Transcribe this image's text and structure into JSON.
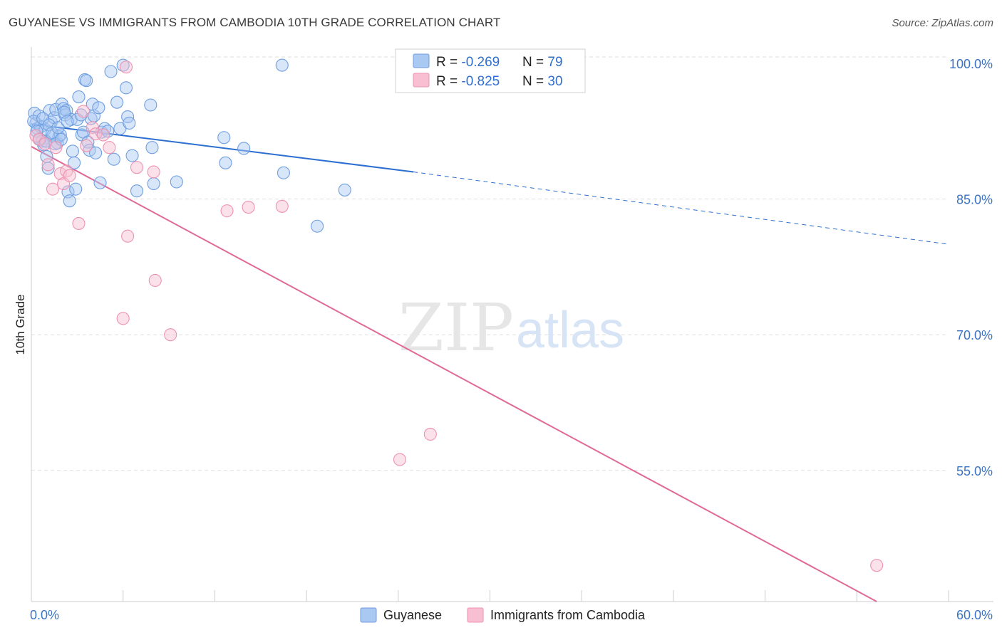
{
  "title": "GUYANESE VS IMMIGRANTS FROM CAMBODIA 10TH GRADE CORRELATION CHART",
  "source": "Source: ZipAtlas.com",
  "watermark": {
    "zip": "ZIP",
    "atlas": "atlas"
  },
  "colors": {
    "blue_fill": "#a9c8f2",
    "blue_stroke": "#6f9ee0",
    "blue_line": "#2d6fd1",
    "pink_fill": "#f7bfd1",
    "pink_stroke": "#ee93b1",
    "pink_line": "#e06a97",
    "grid": "#dddddd",
    "tick_text": "#3b74c4"
  },
  "legend": {
    "rows": [
      {
        "r_label": "R = ",
        "r_value": "-0.269",
        "n_label": "N = ",
        "n_value": "79"
      },
      {
        "r_label": "R = ",
        "r_value": "-0.825",
        "n_label": "N = ",
        "n_value": "30"
      }
    ]
  },
  "chart_data": {
    "type": "scatter",
    "ylabel": "10th Grade",
    "xlim": [
      0,
      60
    ],
    "ylim": [
      40.5,
      101.5
    ],
    "x_tick_labels": [
      "0.0%",
      "60.0%"
    ],
    "y_ticks": [
      100,
      85,
      70,
      55
    ],
    "y_tick_labels": [
      "100.0%",
      "85.0%",
      "70.0%",
      "55.0%"
    ],
    "grid": true,
    "legend_position": "top-center",
    "series": [
      {
        "name": "Guyanese",
        "color": "blue",
        "trend": {
          "x0": 0,
          "y0": 93.3,
          "x1": 25,
          "y1": 88.0,
          "dash_to_x": 60,
          "dash_to_y": 80.0
        },
        "points": [
          [
            0.2,
            94.5
          ],
          [
            0.3,
            93.4
          ],
          [
            0.4,
            92.8
          ],
          [
            0.5,
            94.2
          ],
          [
            0.6,
            93.0
          ],
          [
            0.7,
            91.4
          ],
          [
            0.8,
            91.0
          ],
          [
            0.9,
            92.7
          ],
          [
            1.0,
            89.7
          ],
          [
            1.1,
            88.4
          ],
          [
            1.2,
            94.8
          ],
          [
            1.3,
            93.5
          ],
          [
            1.4,
            92.0
          ],
          [
            1.5,
            94.0
          ],
          [
            1.6,
            94.9
          ],
          [
            1.7,
            91.2
          ],
          [
            1.8,
            91.9
          ],
          [
            1.9,
            92.1
          ],
          [
            2.0,
            95.5
          ],
          [
            2.1,
            95.0
          ],
          [
            2.2,
            94.3
          ],
          [
            2.3,
            94.8
          ],
          [
            2.4,
            85.8
          ],
          [
            2.5,
            84.8
          ],
          [
            2.6,
            93.8
          ],
          [
            2.7,
            90.3
          ],
          [
            2.8,
            89.0
          ],
          [
            2.9,
            86.1
          ],
          [
            3.0,
            93.8
          ],
          [
            3.1,
            96.3
          ],
          [
            3.3,
            92.1
          ],
          [
            3.4,
            92.4
          ],
          [
            3.5,
            98.2
          ],
          [
            3.6,
            98.1
          ],
          [
            3.7,
            91.3
          ],
          [
            3.8,
            90.4
          ],
          [
            3.9,
            93.9
          ],
          [
            4.0,
            95.5
          ],
          [
            4.1,
            94.2
          ],
          [
            4.2,
            90.1
          ],
          [
            4.4,
            95.1
          ],
          [
            4.5,
            86.8
          ],
          [
            4.6,
            92.4
          ],
          [
            4.8,
            92.8
          ],
          [
            5.0,
            92.5
          ],
          [
            5.2,
            99.1
          ],
          [
            5.4,
            89.4
          ],
          [
            5.6,
            95.7
          ],
          [
            5.8,
            92.8
          ],
          [
            6.0,
            99.8
          ],
          [
            6.2,
            97.3
          ],
          [
            6.3,
            94.1
          ],
          [
            6.4,
            93.4
          ],
          [
            6.6,
            89.8
          ],
          [
            6.9,
            85.9
          ],
          [
            7.8,
            95.4
          ],
          [
            7.9,
            90.7
          ],
          [
            8.0,
            86.7
          ],
          [
            9.5,
            86.9
          ],
          [
            12.6,
            91.8
          ],
          [
            12.7,
            89.0
          ],
          [
            13.9,
            90.6
          ],
          [
            16.4,
            99.8
          ],
          [
            16.5,
            87.9
          ],
          [
            18.7,
            82.0
          ],
          [
            20.5,
            86.0
          ],
          [
            0.15,
            93.6
          ],
          [
            0.35,
            92.5
          ],
          [
            0.55,
            91.6
          ],
          [
            0.75,
            93.9
          ],
          [
            0.95,
            91.4
          ],
          [
            1.15,
            93.2
          ],
          [
            1.35,
            92.3
          ],
          [
            1.55,
            91.1
          ],
          [
            1.75,
            92.9
          ],
          [
            1.95,
            91.6
          ],
          [
            2.15,
            94.6
          ],
          [
            2.35,
            93.6
          ],
          [
            3.25,
            94.3
          ]
        ]
      },
      {
        "name": "Immigrants from Cambodia",
        "color": "pink",
        "trend": {
          "x0": 0,
          "y0": 90.8,
          "x1": 55.3,
          "y1": 40.5
        },
        "points": [
          [
            0.3,
            92.0
          ],
          [
            0.5,
            91.6
          ],
          [
            0.9,
            91.1
          ],
          [
            1.1,
            88.8
          ],
          [
            1.4,
            86.1
          ],
          [
            1.6,
            90.7
          ],
          [
            1.9,
            87.8
          ],
          [
            2.1,
            86.7
          ],
          [
            2.3,
            88.1
          ],
          [
            2.5,
            87.6
          ],
          [
            3.1,
            82.3
          ],
          [
            3.4,
            94.7
          ],
          [
            3.6,
            90.9
          ],
          [
            4.0,
            92.9
          ],
          [
            4.2,
            92.2
          ],
          [
            4.7,
            92.1
          ],
          [
            5.1,
            90.7
          ],
          [
            6.0,
            71.8
          ],
          [
            6.2,
            99.6
          ],
          [
            6.3,
            80.9
          ],
          [
            6.9,
            88.5
          ],
          [
            8.0,
            88.0
          ],
          [
            8.1,
            76.0
          ],
          [
            9.1,
            70.0
          ],
          [
            12.8,
            83.7
          ],
          [
            14.2,
            84.1
          ],
          [
            16.4,
            84.2
          ],
          [
            24.1,
            56.2
          ],
          [
            26.1,
            59.0
          ],
          [
            55.3,
            44.5
          ]
        ]
      }
    ]
  }
}
